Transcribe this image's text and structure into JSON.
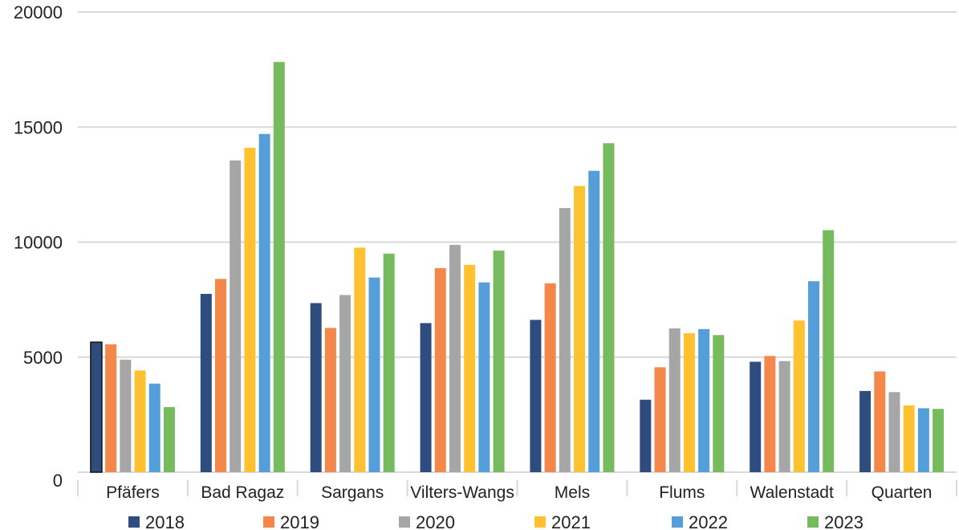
{
  "chart_data": {
    "type": "bar",
    "title": "",
    "xlabel": "",
    "ylabel": "",
    "ylim": [
      0,
      20000
    ],
    "yticks": [
      0,
      5000,
      10000,
      15000,
      20000
    ],
    "grid": true,
    "legend_position": "bottom",
    "categories": [
      "Pfäfers",
      "Bad Ragaz",
      "Sargans",
      "Vilters-Wangs",
      "Mels",
      "Flums",
      "Walenstadt",
      "Quarten"
    ],
    "series": [
      {
        "name": "2018",
        "color": "#2e4c7e",
        "values": [
          5650,
          7750,
          7350,
          6480,
          6620,
          3150,
          4800,
          3530
        ]
      },
      {
        "name": "2019",
        "color": "#f4874a",
        "values": [
          5560,
          8400,
          6270,
          8870,
          8210,
          4560,
          5050,
          4380
        ]
      },
      {
        "name": "2020",
        "color": "#a6a6a6",
        "values": [
          4890,
          13550,
          7700,
          9880,
          11480,
          6250,
          4830,
          3480
        ]
      },
      {
        "name": "2021",
        "color": "#fec12f",
        "values": [
          4420,
          14100,
          9760,
          9010,
          12440,
          6040,
          6590,
          2900
        ]
      },
      {
        "name": "2022",
        "color": "#549fd9",
        "values": [
          3850,
          14700,
          8460,
          8250,
          13100,
          6220,
          8300,
          2780
        ]
      },
      {
        "name": "2023",
        "color": "#76bb5e",
        "values": [
          2830,
          17830,
          9500,
          9630,
          14300,
          5960,
          10520,
          2750
        ]
      }
    ]
  }
}
